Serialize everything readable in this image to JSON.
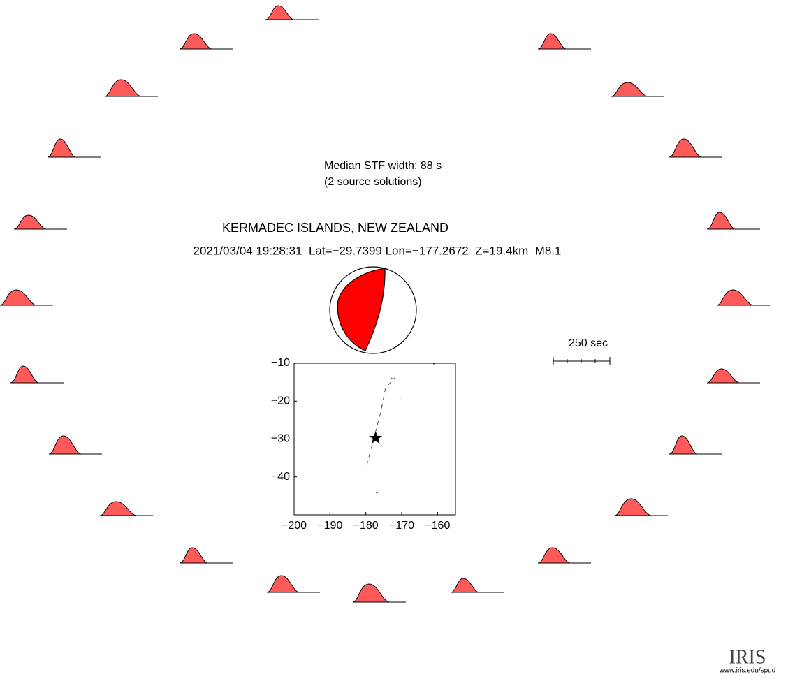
{
  "header": {
    "median_width": "Median STF width: 88 s",
    "solutions": "(2 source solutions)",
    "region": "KERMADEC ISLANDS, NEW ZEALAND",
    "event": "2021/03/04 19:28:31  Lat=−29.7399 Lon=−177.2672  Z=19.4km  M8.1"
  },
  "scale_label": "250 sec",
  "logo": {
    "name": "IRIS",
    "url": "www.iris.edu/spud"
  },
  "chart_data": {
    "type": "scatter",
    "x": [
      -177.2672
    ],
    "y": [
      -29.7399
    ],
    "color": "#000000",
    "xlim": [
      -200,
      -155
    ],
    "ylim": [
      -50,
      -10
    ],
    "xticks": [
      {
        "value": -200,
        "label": "−200"
      },
      {
        "value": -190,
        "label": "−190"
      },
      {
        "value": -180,
        "label": "−180"
      },
      {
        "value": -170,
        "label": "−170"
      },
      {
        "value": -160,
        "label": "−160"
      }
    ],
    "yticks": [
      {
        "value": -10,
        "label": "−10"
      },
      {
        "value": -20,
        "label": "−20"
      },
      {
        "value": -30,
        "label": "−30"
      },
      {
        "value": -40,
        "label": "−40"
      }
    ]
  }
}
